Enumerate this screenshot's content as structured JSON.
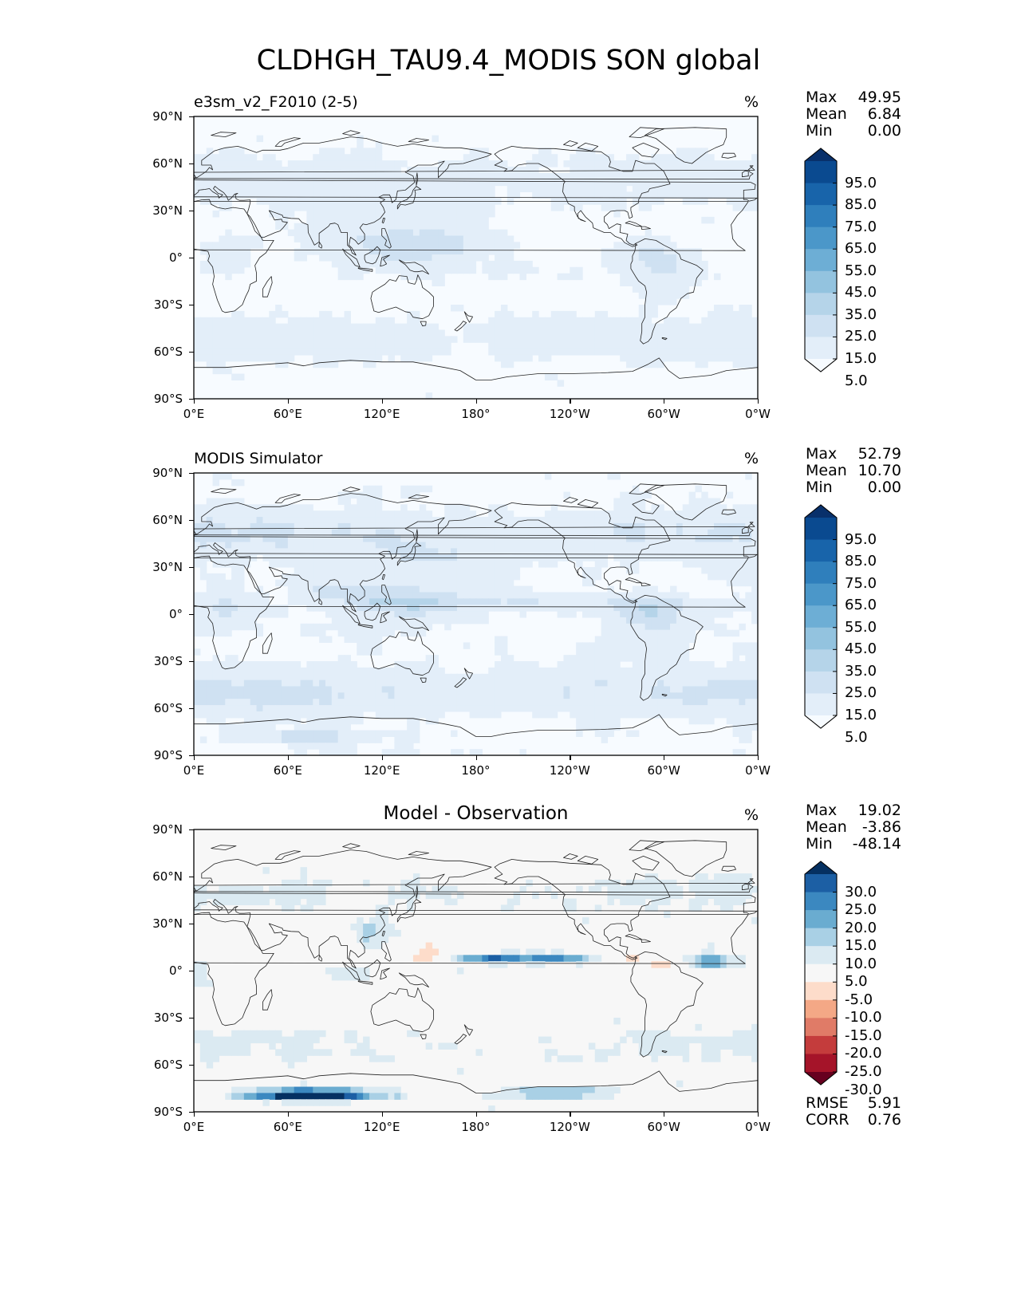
{
  "figure": {
    "title": "CLDHGH_TAU9.4_MODIS SON global"
  },
  "lat_ticks": [
    "90°N",
    "60°N",
    "30°N",
    "0°",
    "30°S",
    "60°S",
    "90°S"
  ],
  "lon_ticks": [
    "0°E",
    "60°E",
    "120°E",
    "180°",
    "120°W",
    "60°W",
    "0°W"
  ],
  "panels": [
    {
      "id": "model",
      "title": "e3sm_v2_F2010 (2-5)",
      "units": "%",
      "stats": [
        {
          "label": "Max",
          "value": "49.95"
        },
        {
          "label": "Mean",
          "value": "6.84"
        },
        {
          "label": "Min",
          "value": "0.00"
        }
      ],
      "colorbar": {
        "labels": [
          "95.0",
          "85.0",
          "75.0",
          "65.0",
          "55.0",
          "45.0",
          "35.0",
          "25.0",
          "15.0",
          "5.0"
        ],
        "colors": [
          "#f7fbff",
          "#e3eef9",
          "#cfe1f2",
          "#b5d4e9",
          "#93c3df",
          "#6daed5",
          "#4b97c9",
          "#2f7fbc",
          "#1864aa",
          "#0a4a90",
          "#08306b"
        ]
      }
    },
    {
      "id": "obs",
      "title": "MODIS Simulator",
      "units": "%",
      "stats": [
        {
          "label": "Max",
          "value": "52.79"
        },
        {
          "label": "Mean",
          "value": "10.70"
        },
        {
          "label": "Min",
          "value": "0.00"
        }
      ],
      "colorbar": {
        "labels": [
          "95.0",
          "85.0",
          "75.0",
          "65.0",
          "55.0",
          "45.0",
          "35.0",
          "25.0",
          "15.0",
          "5.0"
        ],
        "colors": [
          "#f7fbff",
          "#e3eef9",
          "#cfe1f2",
          "#b5d4e9",
          "#93c3df",
          "#6daed5",
          "#4b97c9",
          "#2f7fbc",
          "#1864aa",
          "#0a4a90",
          "#08306b"
        ]
      }
    },
    {
      "id": "diff",
      "title": "Model - Observation",
      "units": "%",
      "stats": [
        {
          "label": "Max",
          "value": "19.02"
        },
        {
          "label": "Mean",
          "value": "-3.86"
        },
        {
          "label": "Min",
          "value": "-48.14"
        }
      ],
      "extra_stats": [
        {
          "label": "RMSE",
          "value": "5.91"
        },
        {
          "label": "CORR",
          "value": "0.76"
        }
      ],
      "colorbar": {
        "labels": [
          "30.0",
          "25.0",
          "20.0",
          "15.0",
          "10.0",
          "5.0",
          "-5.0",
          "-10.0",
          "-15.0",
          "-20.0",
          "-25.0",
          "-30.0"
        ],
        "colors": [
          "#67001f",
          "#a51429",
          "#c43c3c",
          "#e07b67",
          "#f4a886",
          "#fddcca",
          "#f7f7f7",
          "#dbeaf2",
          "#a9d0e5",
          "#6aacd0",
          "#3b88c0",
          "#1c5fa4",
          "#053061"
        ]
      }
    }
  ]
}
